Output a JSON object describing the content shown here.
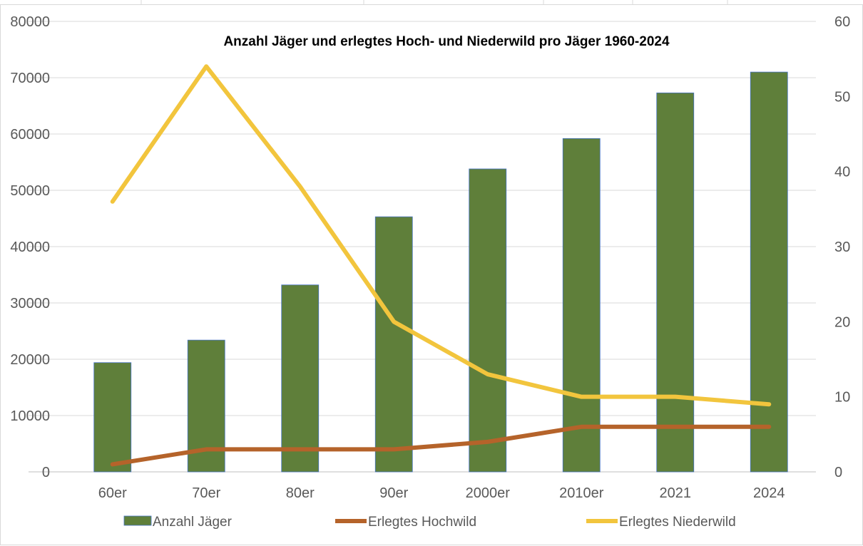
{
  "chart_data": {
    "type": "bar+line",
    "title": "Anzahl Jäger und erlegtes Hoch- und Niederwild pro Jäger 1960-2024",
    "categories": [
      "60er",
      "70er",
      "80er",
      "90er",
      "2000er",
      "2010er",
      "2021",
      "2024"
    ],
    "y_left": {
      "range": [
        0,
        80000
      ],
      "ticks": [
        "0",
        "10000",
        "20000",
        "30000",
        "40000",
        "50000",
        "60000",
        "70000",
        "80000"
      ]
    },
    "y_right": {
      "range": [
        0,
        60
      ],
      "ticks": [
        "0",
        "10",
        "20",
        "30",
        "40",
        "50",
        "60"
      ]
    },
    "grid": true,
    "legend_position": "bottom",
    "series": [
      {
        "name": "Anzahl Jäger",
        "type": "bar",
        "axis": "left",
        "color": "#5f7f3a",
        "values": [
          19400,
          23400,
          33200,
          45300,
          53800,
          59200,
          67300,
          71000
        ]
      },
      {
        "name": "Erlegtes Hochwild",
        "type": "line",
        "axis": "right",
        "color": "#b5632a",
        "values": [
          1,
          3,
          3,
          3,
          4,
          6,
          6,
          6
        ]
      },
      {
        "name": "Erlegtes Niederwild",
        "type": "line",
        "axis": "right",
        "color": "#f2c53d",
        "values": [
          36,
          54,
          38,
          20,
          13,
          10,
          10,
          9
        ]
      }
    ]
  }
}
